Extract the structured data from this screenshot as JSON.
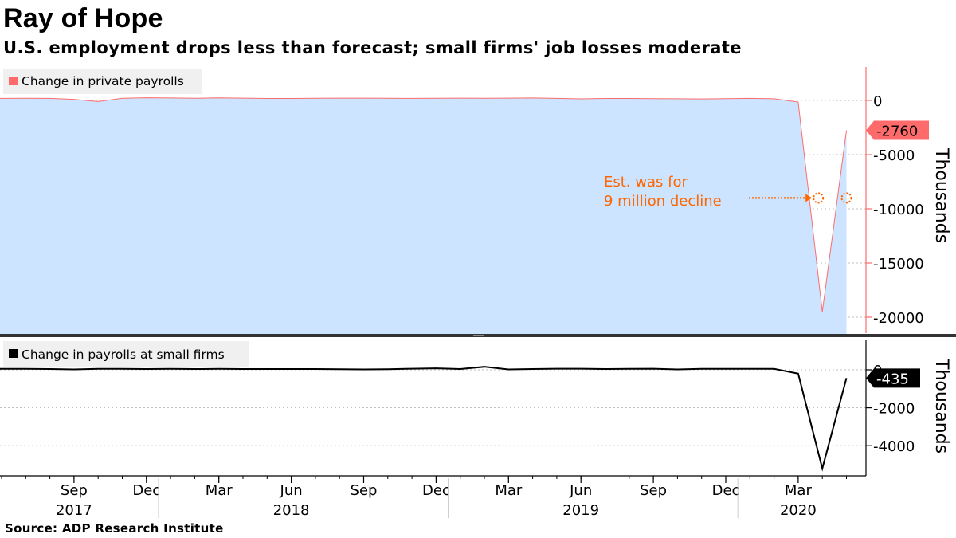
{
  "header": {
    "title": "Ray of Hope",
    "subtitle": "U.S. employment drops less than forecast; small firms' job losses moderate"
  },
  "source": "Source: ADP Research Institute",
  "colors": {
    "private_line": "#ff6b6b",
    "private_fill": "#cce4ff",
    "small_line": "#000000",
    "annotation": "#ff6600",
    "label_bg_private": "#ff6b6b",
    "label_bg_small": "#000000"
  },
  "chart_data": [
    {
      "type": "area",
      "title": "Change in private payrolls",
      "legend": "Change in private payrolls",
      "ylabel": "Thousands",
      "yticks": [
        0,
        -5000,
        -10000,
        -15000,
        -20000
      ],
      "ytick_labels": [
        "0",
        "-5000",
        "-10000",
        "-15000",
        "-20000"
      ],
      "ylim": [
        -21800,
        3000
      ],
      "x": [
        "2017-06",
        "2017-07",
        "2017-08",
        "2017-09",
        "2017-10",
        "2017-11",
        "2017-12",
        "2018-01",
        "2018-02",
        "2018-03",
        "2018-04",
        "2018-05",
        "2018-06",
        "2018-07",
        "2018-08",
        "2018-09",
        "2018-10",
        "2018-11",
        "2018-12",
        "2019-01",
        "2019-02",
        "2019-03",
        "2019-04",
        "2019-05",
        "2019-06",
        "2019-07",
        "2019-08",
        "2019-09",
        "2019-10",
        "2019-11",
        "2019-12",
        "2020-01",
        "2020-02",
        "2020-03",
        "2020-04",
        "2020-05"
      ],
      "values": [
        190,
        200,
        190,
        100,
        -100,
        200,
        250,
        230,
        200,
        240,
        210,
        180,
        180,
        200,
        210,
        210,
        200,
        190,
        200,
        210,
        200,
        210,
        230,
        190,
        150,
        180,
        180,
        170,
        160,
        140,
        170,
        190,
        160,
        -150,
        -19500,
        -2760
      ],
      "last_value_label": "-2760",
      "annotation": {
        "text_line1": "Est. was for",
        "text_line2": "9 million decline",
        "estimate_value": -9000,
        "estimate_at": "2020-05"
      }
    },
    {
      "type": "line",
      "title": "Change in payrolls at small firms",
      "legend": "Change in payrolls at small firms",
      "ylabel": "Thousands",
      "yticks": [
        0,
        -2000,
        -4000
      ],
      "ytick_labels": [
        "0",
        "-2000",
        "-4000"
      ],
      "ylim": [
        -5500,
        1100
      ],
      "x": [
        "2017-06",
        "2017-07",
        "2017-08",
        "2017-09",
        "2017-10",
        "2017-11",
        "2017-12",
        "2018-01",
        "2018-02",
        "2018-03",
        "2018-04",
        "2018-05",
        "2018-06",
        "2018-07",
        "2018-08",
        "2018-09",
        "2018-10",
        "2018-11",
        "2018-12",
        "2019-01",
        "2019-02",
        "2019-03",
        "2019-04",
        "2019-05",
        "2019-06",
        "2019-07",
        "2019-08",
        "2019-09",
        "2019-10",
        "2019-11",
        "2019-12",
        "2020-01",
        "2020-02",
        "2020-03",
        "2020-04",
        "2020-05"
      ],
      "values": [
        50,
        50,
        40,
        20,
        50,
        50,
        40,
        50,
        40,
        50,
        40,
        40,
        40,
        40,
        30,
        20,
        30,
        60,
        80,
        40,
        160,
        20,
        40,
        60,
        60,
        40,
        50,
        60,
        20,
        50,
        50,
        50,
        50,
        -200,
        -5200,
        -435
      ],
      "last_value_label": "-435"
    }
  ],
  "xaxis": {
    "months": [
      {
        "label": "Sep",
        "x": "2017-09"
      },
      {
        "label": "Dec",
        "x": "2017-12"
      },
      {
        "label": "Mar",
        "x": "2018-03"
      },
      {
        "label": "Jun",
        "x": "2018-06"
      },
      {
        "label": "Sep",
        "x": "2018-09"
      },
      {
        "label": "Dec",
        "x": "2018-12"
      },
      {
        "label": "Mar",
        "x": "2019-03"
      },
      {
        "label": "Jun",
        "x": "2019-06"
      },
      {
        "label": "Sep",
        "x": "2019-09"
      },
      {
        "label": "Dec",
        "x": "2019-12"
      },
      {
        "label": "Mar",
        "x": "2020-03"
      }
    ],
    "years": [
      {
        "label": "2017",
        "x": "2017-09"
      },
      {
        "label": "2018",
        "x": "2018-06"
      },
      {
        "label": "2019",
        "x": "2019-06"
      },
      {
        "label": "2020",
        "x": "2020-03"
      }
    ]
  }
}
